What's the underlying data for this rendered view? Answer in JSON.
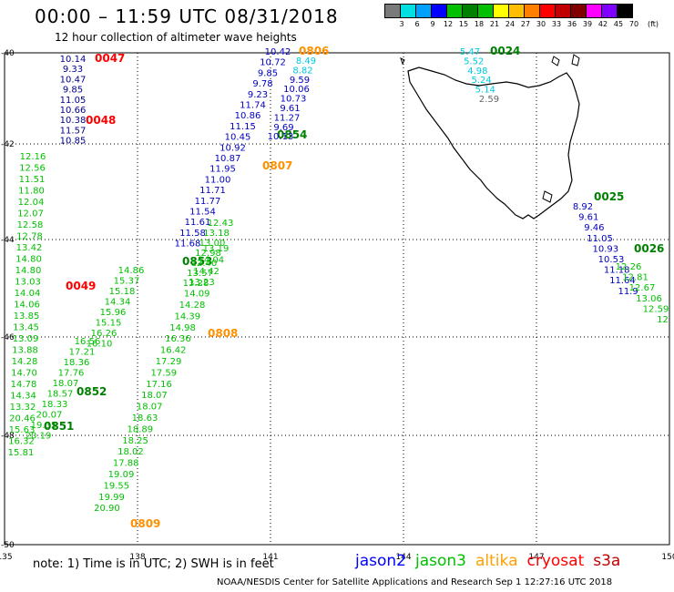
{
  "title": "00:00 – 11:59 UTC 08/31/2018",
  "subtitle": "12 hour collection of altimeter wave heights",
  "colorbar": {
    "unit": "(ft)",
    "labels": [
      "3",
      "6",
      "9",
      "12",
      "15",
      "18",
      "21",
      "24",
      "27",
      "30",
      "33",
      "36",
      "39",
      "42",
      "45",
      "70"
    ],
    "colors": [
      "#7a7a7a",
      "#00e0e0",
      "#00a0ff",
      "#0000ff",
      "#00c000",
      "#008000",
      "#00c000",
      "#ffff00",
      "#ffbf00",
      "#ff8000",
      "#ff0000",
      "#c00000",
      "#800000",
      "#ff00ff",
      "#8000ff",
      "#000000"
    ]
  },
  "axes": {
    "lon_labels": [
      "135",
      "138",
      "141",
      "144",
      "147",
      "150"
    ],
    "lat_labels": [
      "-40",
      "-42",
      "-44",
      "-46",
      "-48",
      "-50"
    ]
  },
  "tracks": [
    {
      "id": "t1",
      "color": "#00008b",
      "label": {
        "text": "0047",
        "color": "#ff0000"
      },
      "values": [
        "10.14",
        "9.33",
        "10.47",
        "9.85",
        "11.05",
        "10.66",
        "10.38",
        "11.57",
        "10.85"
      ]
    },
    {
      "id": "t1b",
      "color": "#ff0000",
      "label": {
        "text": "0048",
        "color": "#ff0000"
      },
      "values": []
    },
    {
      "id": "t2",
      "color": "#00c000",
      "label": {
        "text": "0049",
        "color": "#ff0000"
      },
      "values": [
        "12.16",
        "12.56",
        "11.51",
        "11.80",
        "12.04",
        "12.07",
        "12.58",
        "12.78",
        "13.42",
        "14.80",
        "14.80",
        "13.03",
        "14.04",
        "14.06",
        "13.85",
        "13.45",
        "13.09",
        "13.88",
        "14.28",
        "14.70",
        "14.78",
        "14.34",
        "13.32",
        "20.46",
        "15.63",
        "16.32",
        "15.81"
      ]
    },
    {
      "id": "t3",
      "color": "#00c000",
      "label": {
        "text": "0852",
        "color": "#008000"
      },
      "values": [
        "16.56",
        "17.21",
        "18.36",
        "17.76",
        "18.07",
        "18.57",
        "18.33",
        "20.07",
        "19.35",
        "20.19"
      ]
    },
    {
      "id": "t3b",
      "color": "#008000",
      "label": {
        "text": "0851",
        "color": "#008000"
      },
      "values": []
    },
    {
      "id": "t4",
      "color": "#00c000",
      "label": {
        "text": "0853",
        "color": "#008000"
      },
      "values": [
        "14.86",
        "15.37",
        "15.18",
        "14.34",
        "15.96",
        "15.15",
        "16.26",
        "16.10"
      ]
    },
    {
      "id": "t5",
      "color": "#00c000",
      "label": {
        "text": "0808",
        "color": "#ff9000"
      },
      "values": [
        "13.19",
        "14.04",
        "14.42",
        "13.23",
        "14.09",
        "14.28",
        "14.39",
        "14.98",
        "16.36",
        "16.42",
        "17.29",
        "17.59",
        "17.16",
        "18.07",
        "18.07",
        "18.63",
        "18.89",
        "18.25",
        "18.02",
        "17.88",
        "19.09",
        "19.55",
        "19.99",
        "20.90"
      ]
    },
    {
      "id": "t5b",
      "color": "#ff9000",
      "label": {
        "text": "0809",
        "color": "#ff9000"
      },
      "values": []
    },
    {
      "id": "t6",
      "color": "#0000c0",
      "label": {
        "text": "0806",
        "color": "#ff9000"
      },
      "values": [
        "10.42",
        "10.72",
        "9.85",
        "9.78",
        "9.23",
        "11.74",
        "10.86",
        "11.15",
        "10.45",
        "10.92",
        "10.87",
        "11.95",
        "11.00",
        "11.71",
        "11.77",
        "11.54",
        "11.61",
        "11.58",
        "11.68"
      ]
    },
    {
      "id": "t6b",
      "color": "#00c000",
      "label": {
        "text": "0854",
        "color": "#008000"
      },
      "values": [
        "12.43",
        "13.18",
        "13.00",
        "12.98",
        "12.40",
        "13.57",
        "13.28"
      ]
    },
    {
      "id": "t6c",
      "color": "#ff9000",
      "label": {
        "text": "0807",
        "color": "#ff9000"
      },
      "values": []
    },
    {
      "id": "t7",
      "color": "#00b0e0",
      "label": {
        "text": "0024",
        "color": "#008000"
      },
      "values": [
        "5.47",
        "5.52",
        "4.98",
        "5.24",
        "5.14",
        "2.59",
        "8.49",
        "8.82",
        "9.59",
        "10.06",
        "10.73",
        "9.61",
        "11.27",
        "9.69",
        "10.13"
      ]
    },
    {
      "id": "t8",
      "color": "#0000c0",
      "label": {
        "text": "0025",
        "color": "#008000"
      },
      "values": [
        "8.92",
        "9.61",
        "9.46",
        "11.05",
        "10.93",
        "10.53",
        "11.18",
        "11.64",
        "11.9"
      ]
    },
    {
      "id": "t8b",
      "color": "#00c000",
      "label": {
        "text": "0026",
        "color": "#008000"
      },
      "values": [
        "12.26",
        "12.81",
        "12.67",
        "13.06",
        "12.59",
        "12"
      ]
    }
  ],
  "footer": {
    "note": "note:  1) Time is in UTC;  2) SWH is in feet",
    "legend": [
      {
        "name": "jason2",
        "color": "#0000ff"
      },
      {
        "name": "jason3",
        "color": "#00c000"
      },
      {
        "name": "altika",
        "color": "#ffa000"
      },
      {
        "name": "cryosat",
        "color": "#ff0000"
      },
      {
        "name": "s3a",
        "color": "#c00000"
      }
    ],
    "credits": "NOAA/NESDIS Center for Satellite Applications and Research    Sep  1 12:27:16 UTC 2018"
  }
}
